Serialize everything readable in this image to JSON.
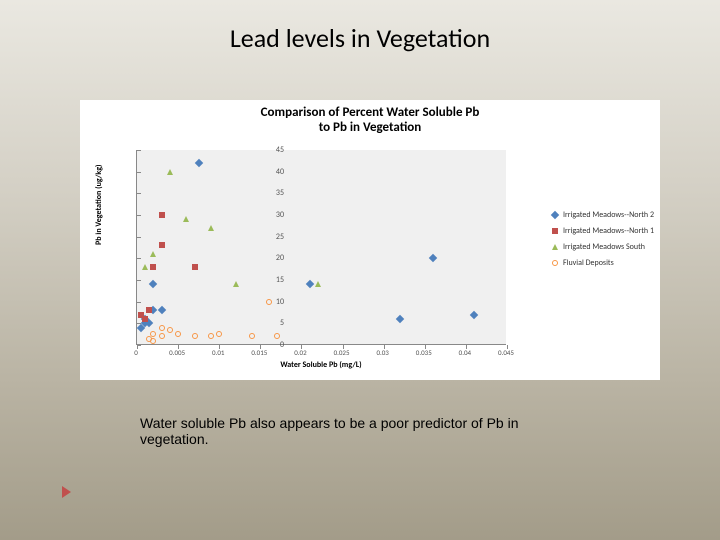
{
  "slide": {
    "title": "Lead levels in Vegetation",
    "title_fontsize": 26,
    "title_color": "#000000"
  },
  "caption": {
    "text": "Water soluble Pb also appears to be a poor predictor of Pb in vegetation.",
    "fontsize": 14,
    "color": "#000000"
  },
  "chart": {
    "type": "scatter",
    "title_line1": "Comparison of Percent Water Soluble Pb",
    "title_line2": "to Pb in Vegetation",
    "title_fontsize": 13,
    "xlabel": "Water Soluble Pb (mg/L)",
    "ylabel": "Pb in Vegetation (ug/kg)",
    "label_fontsize": 8,
    "xlim": [
      0,
      0.045
    ],
    "ylim": [
      0,
      45
    ],
    "xticks": [
      0,
      0.005,
      0.01,
      0.015,
      0.02,
      0.025,
      0.03,
      0.035,
      0.04,
      0.045
    ],
    "yticks": [
      0,
      5,
      10,
      15,
      20,
      25,
      30,
      35,
      40,
      45
    ],
    "plot_bg": "#f0f0f0",
    "panel_bg": "#ffffff",
    "grid_color": "#888888",
    "series": [
      {
        "name": "Irrigated Meadows--North 2",
        "marker": "diamond",
        "color": "#4f81bd",
        "points": [
          [
            0.0005,
            4
          ],
          [
            0.001,
            6
          ],
          [
            0.001,
            5
          ],
          [
            0.0015,
            5
          ],
          [
            0.002,
            14
          ],
          [
            0.002,
            8
          ],
          [
            0.003,
            8
          ],
          [
            0.0075,
            42
          ],
          [
            0.021,
            14
          ],
          [
            0.032,
            6
          ],
          [
            0.036,
            20
          ],
          [
            0.041,
            7
          ]
        ]
      },
      {
        "name": "Irrigated Meadows--North 1",
        "marker": "square",
        "color": "#c0504d",
        "points": [
          [
            0.0005,
            7
          ],
          [
            0.001,
            6
          ],
          [
            0.0015,
            8
          ],
          [
            0.002,
            18
          ],
          [
            0.003,
            23
          ],
          [
            0.003,
            30
          ],
          [
            0.007,
            18
          ]
        ]
      },
      {
        "name": "Irrigated Meadows South",
        "marker": "triangle",
        "color": "#9bbb59",
        "points": [
          [
            0.001,
            18
          ],
          [
            0.002,
            21
          ],
          [
            0.004,
            40
          ],
          [
            0.006,
            29
          ],
          [
            0.009,
            27
          ],
          [
            0.012,
            14
          ],
          [
            0.022,
            14
          ]
        ]
      },
      {
        "name": "Fluvial Deposits",
        "marker": "circle",
        "color": "#f79646",
        "points": [
          [
            0.0015,
            1.5
          ],
          [
            0.002,
            2.5
          ],
          [
            0.002,
            1
          ],
          [
            0.003,
            4
          ],
          [
            0.003,
            2
          ],
          [
            0.004,
            3.5
          ],
          [
            0.005,
            2.5
          ],
          [
            0.007,
            2
          ],
          [
            0.009,
            2
          ],
          [
            0.01,
            2.5
          ],
          [
            0.014,
            2
          ],
          [
            0.016,
            10
          ],
          [
            0.017,
            2
          ]
        ]
      }
    ]
  },
  "accent_color": "#c0504d"
}
